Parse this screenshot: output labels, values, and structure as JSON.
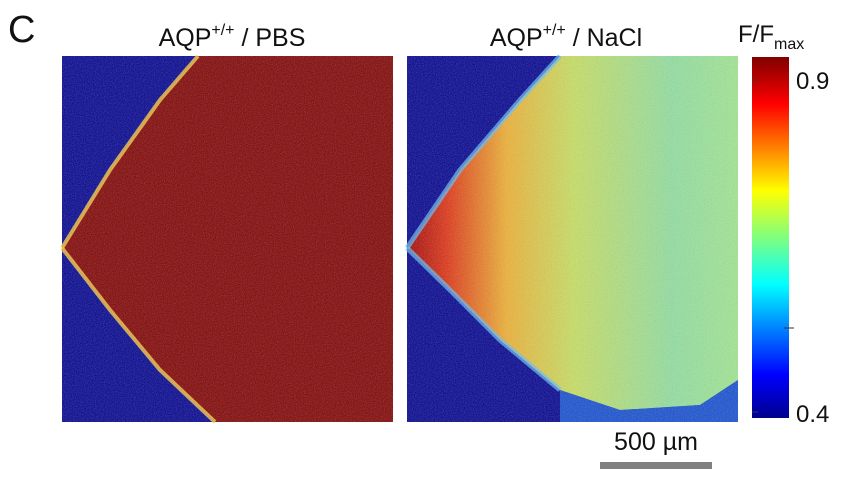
{
  "panel_label": "C",
  "panels": [
    {
      "title": {
        "base": "AQP",
        "sup": "+/+",
        "rest": " / PBS"
      }
    },
    {
      "title": {
        "base": "AQP",
        "sup": "+/+",
        "rest": " / NaCl"
      }
    }
  ],
  "colorbar": {
    "label": {
      "base": "F/F",
      "sub": "max"
    },
    "top_label": "0.9",
    "bottom_label": "0.4"
  },
  "scale_bar": {
    "label": "500 µm"
  }
}
